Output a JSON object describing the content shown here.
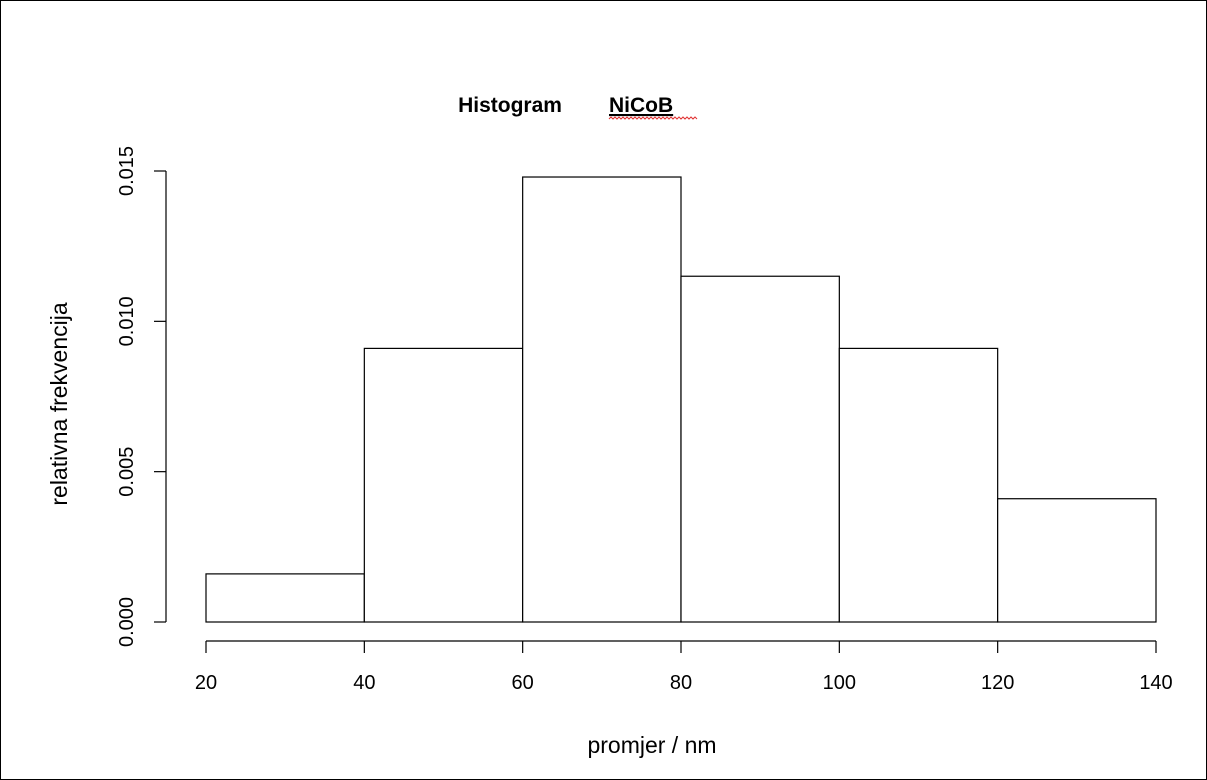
{
  "chart_data": {
    "type": "bar",
    "histogram": true,
    "title": "Histogram",
    "title_suffix": "NiCoB",
    "xlabel": "promjer / nm",
    "ylabel": "relativna frekvencija",
    "bin_edges": [
      20,
      40,
      60,
      80,
      100,
      120,
      140
    ],
    "values": [
      0.0016,
      0.0091,
      0.0148,
      0.0115,
      0.0091,
      0.0041
    ],
    "xlim": [
      20,
      140
    ],
    "ylim": [
      0,
      0.015
    ],
    "xticks": [
      20,
      40,
      60,
      80,
      100,
      120,
      140
    ],
    "xtick_labels": [
      "20",
      "40",
      "60",
      "80",
      "100",
      "120",
      "140"
    ],
    "yticks": [
      0,
      0.005,
      0.01,
      0.015
    ],
    "ytick_labels": [
      "0.000",
      "0.005",
      "0.010",
      "0.015"
    ],
    "grid": false,
    "legend": "none",
    "colors": {
      "bar_fill": "#ffffff",
      "bar_stroke": "#000000",
      "spellcheck_underline": "#e03030"
    }
  }
}
